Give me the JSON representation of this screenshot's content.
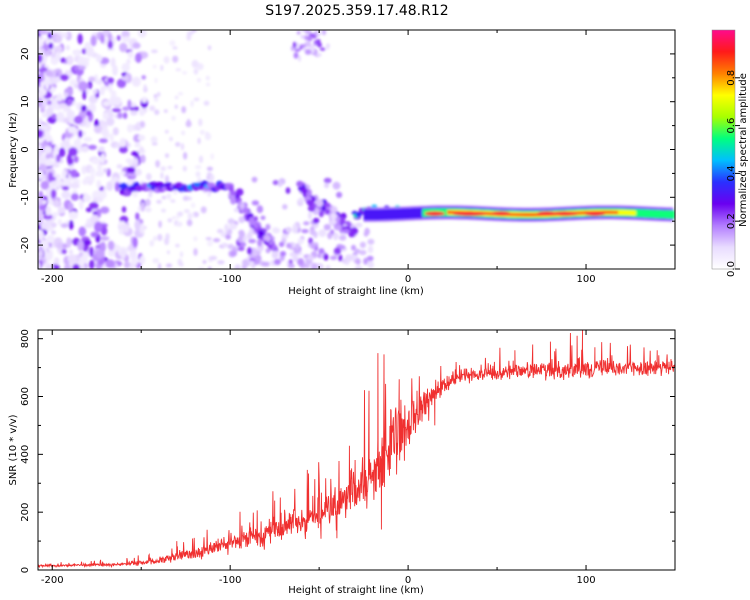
{
  "title": "S197.2025.359.17.48.R12",
  "chart_data": [
    {
      "type": "heatmap",
      "xlabel": "Height of straight line (km)",
      "ylabel": "Frequency (Hz)",
      "xlim": [
        -208,
        150
      ],
      "ylim": [
        -25,
        25
      ],
      "xticks": [
        -200,
        -100,
        0,
        100
      ],
      "yticks": [
        -20,
        -10,
        0,
        10,
        20
      ],
      "colorbar": {
        "label": "Normalized spectral amplitude",
        "range": [
          0,
          1
        ],
        "ticks": [
          0.0,
          0.2,
          0.4,
          0.6,
          0.8
        ],
        "tick_labels": [
          "0.0",
          "0.2",
          "0.4",
          "0.6",
          "0.8"
        ],
        "colormap": [
          "#ffffff",
          "#e9dcff",
          "#b27cff",
          "#6a00f0",
          "#2a30ff",
          "#00bfff",
          "#00ff7f",
          "#a8ff00",
          "#ffff00",
          "#ff8000",
          "#ff1a1a",
          "#ff0a8c"
        ]
      },
      "features": [
        {
          "name": "main-band",
          "x_range": [
            -30,
            150
          ],
          "freq_hz": -13.5,
          "amplitude": 0.85
        },
        {
          "name": "left-band",
          "x_range": [
            -160,
            -100
          ],
          "freq_hz": -8,
          "amplitude": 0.3
        },
        {
          "name": "descending-band-a",
          "x_range": [
            -100,
            -75
          ],
          "freq_hz": [
            -9,
            -21
          ],
          "amplitude": 0.25
        },
        {
          "name": "descending-band-b",
          "x_range": [
            -60,
            -30
          ],
          "freq_hz": [
            -8,
            -18
          ],
          "amplitude": 0.22
        },
        {
          "name": "noise-region",
          "x_range": [
            -208,
            -150
          ],
          "freq_hz": [
            -25,
            25
          ],
          "amplitude": 0.12
        }
      ]
    },
    {
      "type": "line",
      "xlabel": "Height of straight line (km)",
      "ylabel": "SNR (10 * v/v)",
      "xlim": [
        -208,
        150
      ],
      "ylim": [
        0,
        830
      ],
      "xticks": [
        -200,
        -100,
        0,
        100
      ],
      "yticks": [
        0,
        200,
        400,
        600,
        800
      ],
      "color": "#f03030",
      "series": [
        {
          "name": "SNR",
          "x": [
            -208,
            -200,
            -190,
            -180,
            -170,
            -160,
            -150,
            -140,
            -130,
            -120,
            -110,
            -100,
            -90,
            -80,
            -70,
            -60,
            -50,
            -40,
            -30,
            -25,
            -20,
            -15,
            -10,
            -5,
            0,
            5,
            10,
            15,
            20,
            25,
            30,
            40,
            50,
            60,
            70,
            80,
            90,
            100,
            110,
            120,
            130,
            140,
            150
          ],
          "y": [
            15,
            15,
            16,
            17,
            18,
            20,
            25,
            32,
            45,
            60,
            75,
            90,
            110,
            130,
            150,
            170,
            190,
            220,
            270,
            300,
            330,
            380,
            420,
            460,
            500,
            540,
            570,
            610,
            640,
            660,
            670,
            680,
            680,
            690,
            690,
            690,
            695,
            700,
            700,
            700,
            700,
            700,
            700
          ],
          "jitter": [
            3,
            3,
            3,
            4,
            4,
            5,
            7,
            10,
            14,
            18,
            22,
            26,
            30,
            35,
            40,
            45,
            50,
            55,
            75,
            85,
            95,
            105,
            95,
            85,
            75,
            60,
            45,
            35,
            25,
            20,
            18,
            18,
            20,
            22,
            22,
            25,
            28,
            28,
            25,
            22,
            22,
            20,
            20
          ],
          "spikes": [
            [
              -17,
              750
            ],
            [
              -33,
              430
            ],
            [
              -130,
              100
            ],
            [
              -75,
              240
            ],
            [
              -50,
              325
            ],
            [
              -22,
              620
            ],
            [
              -5,
              660
            ],
            [
              5,
              620
            ],
            [
              60,
              760
            ],
            [
              70,
              780
            ],
            [
              80,
              790
            ],
            [
              95,
              810
            ],
            [
              98,
              830
            ],
            [
              105,
              770
            ],
            [
              125,
              755
            ],
            [
              140,
              760
            ],
            [
              -15,
              140
            ],
            [
              -40,
              110
            ],
            [
              15,
              500
            ]
          ]
        }
      ]
    }
  ]
}
